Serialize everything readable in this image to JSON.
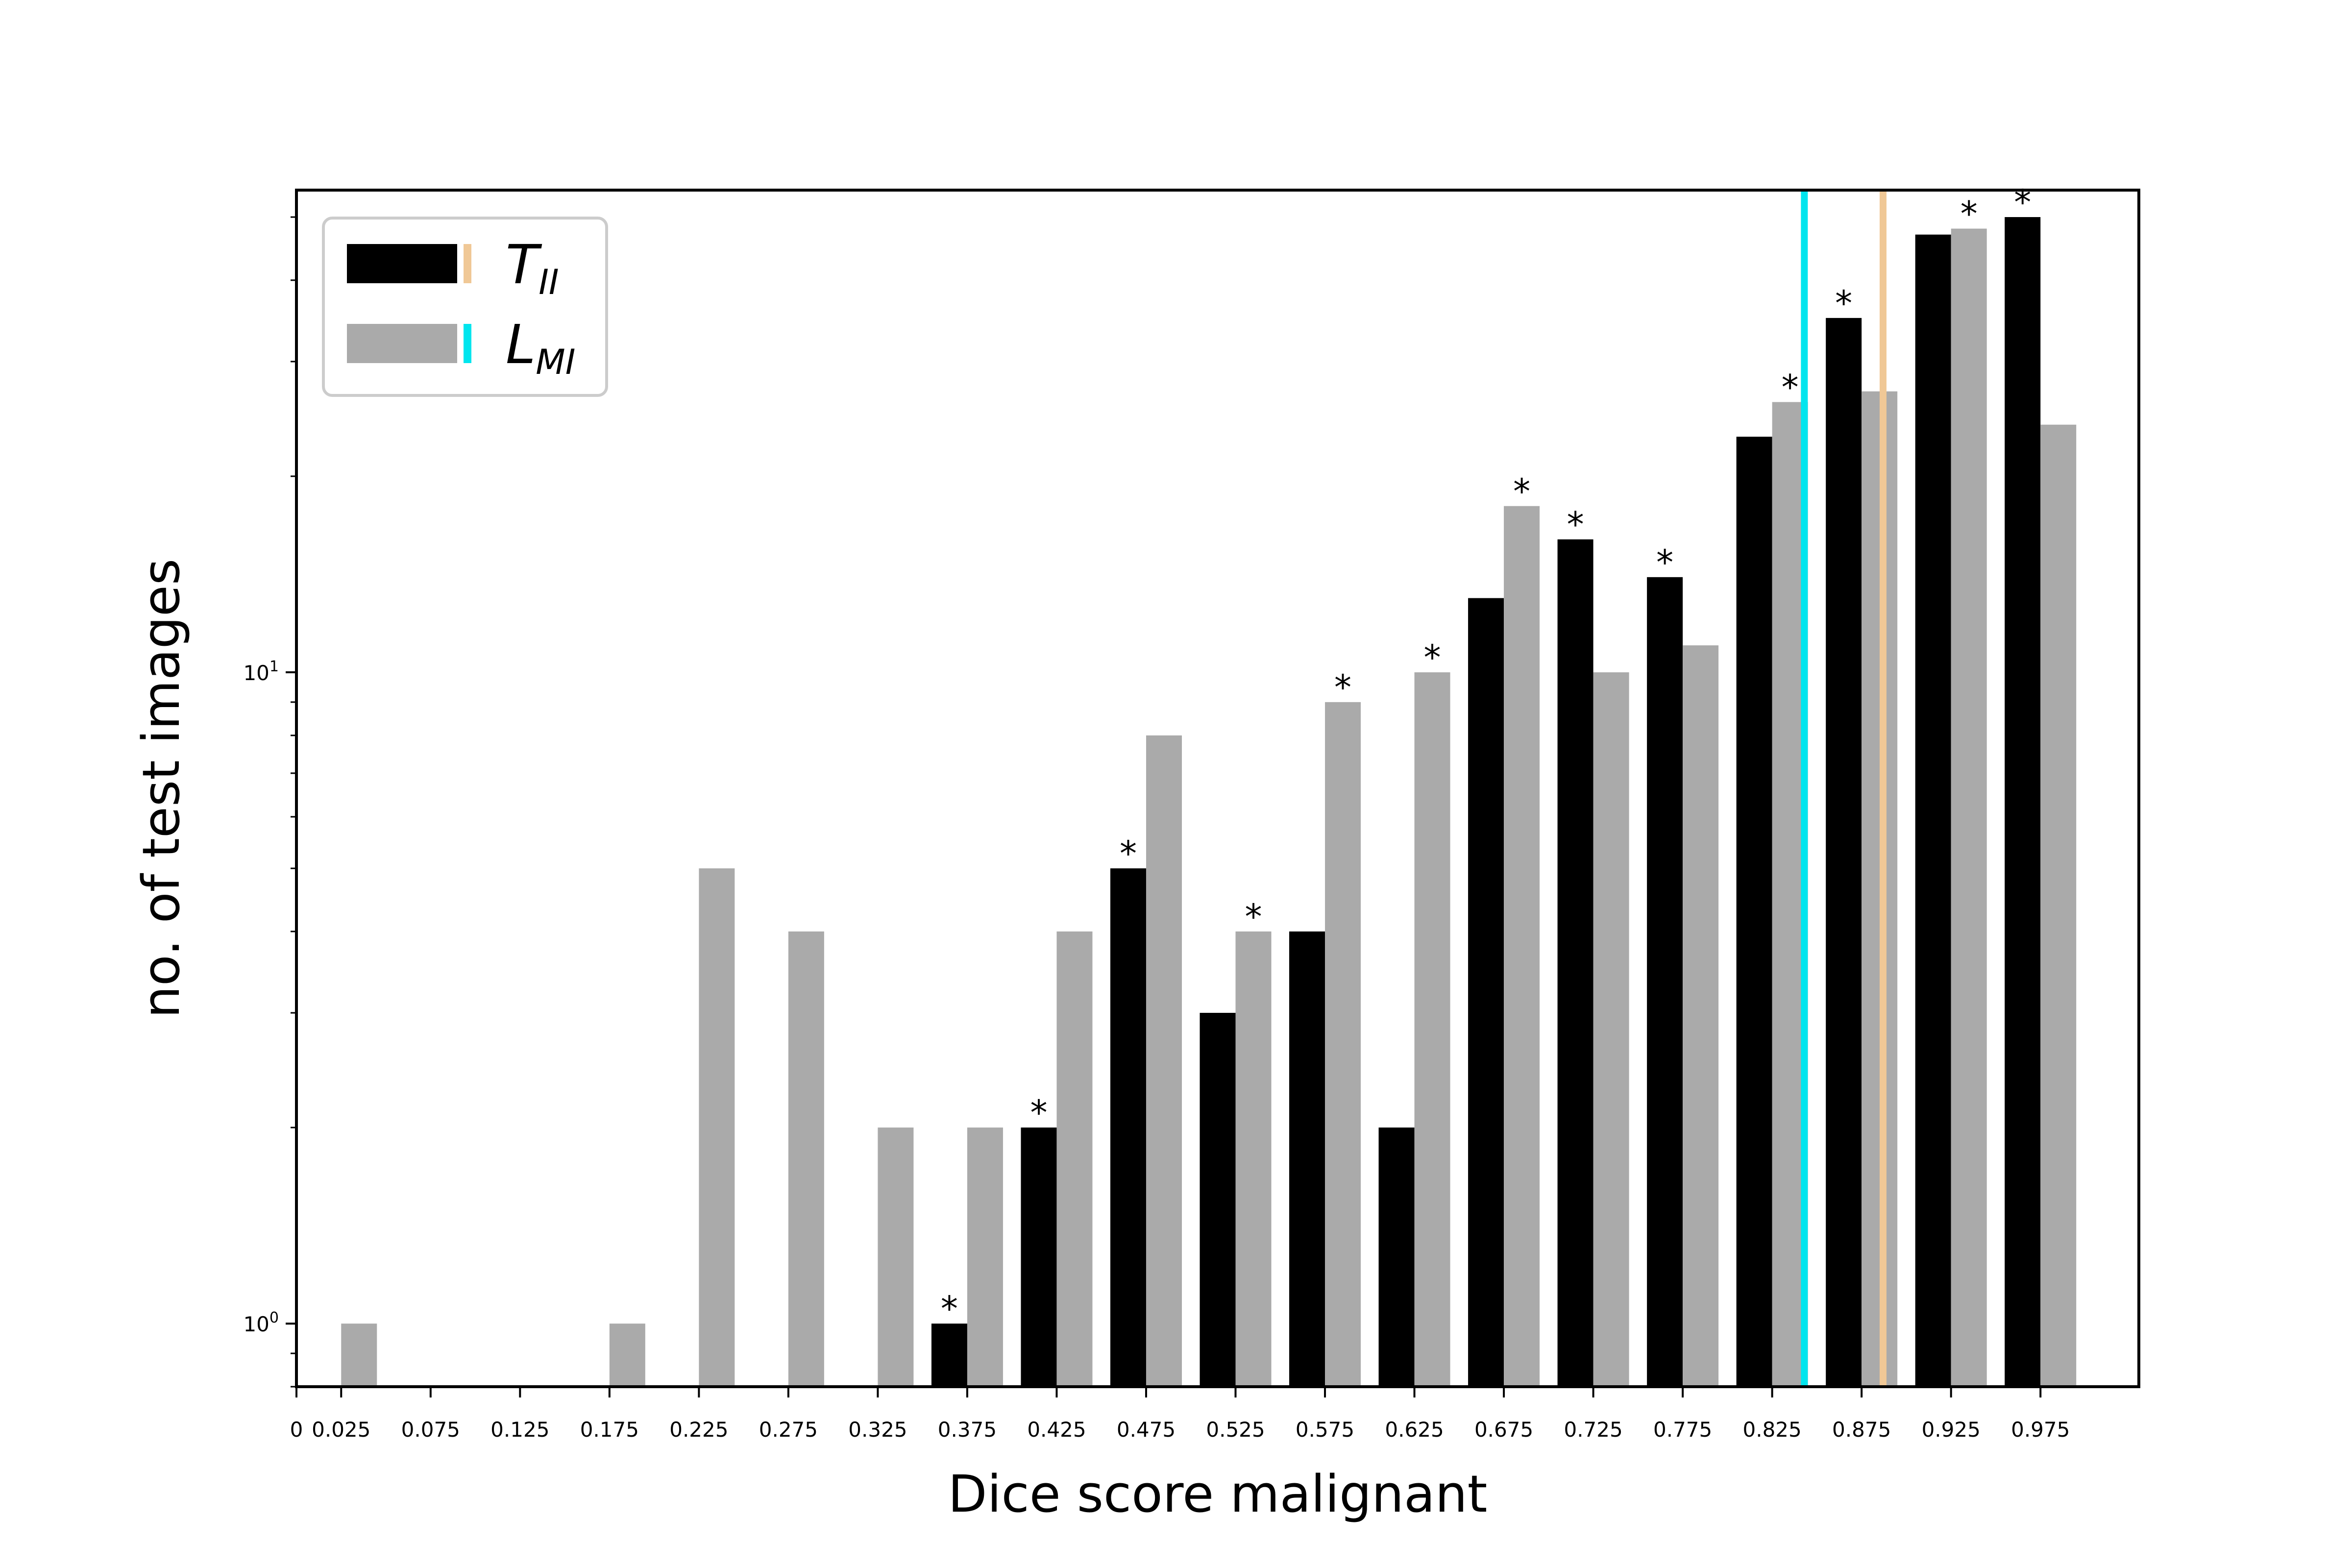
{
  "chart_data": {
    "type": "bar",
    "title": "",
    "xlabel": "Dice score malignant",
    "ylabel": "no. of test images",
    "yscale": "log",
    "ylim": [
      0.8,
      55
    ],
    "xlim": [
      0,
      1.03
    ],
    "x_ticks": [
      "0",
      "0.025",
      "0.075",
      "0.125",
      "0.175",
      "0.225",
      "0.275",
      "0.325",
      "0.375",
      "0.425",
      "0.475",
      "0.525",
      "0.575",
      "0.625",
      "0.675",
      "0.725",
      "0.775",
      "0.825",
      "0.875",
      "0.925",
      "0.975"
    ],
    "y_ticks": [
      {
        "value": 1,
        "base": "10",
        "exp": "0"
      },
      {
        "value": 10,
        "base": "10",
        "exp": "1"
      }
    ],
    "categories": [
      "0.025",
      "0.075",
      "0.125",
      "0.175",
      "0.225",
      "0.275",
      "0.325",
      "0.375",
      "0.425",
      "0.475",
      "0.525",
      "0.575",
      "0.625",
      "0.675",
      "0.725",
      "0.775",
      "0.825",
      "0.875",
      "0.925",
      "0.975"
    ],
    "series": [
      {
        "name_main": "T",
        "name_sub": "II",
        "color": "#000000",
        "marker_color": "#f0c896",
        "values": [
          0,
          0,
          0,
          0,
          0,
          0,
          0,
          1,
          2,
          5,
          3,
          4,
          2,
          13,
          16,
          14,
          23,
          35,
          47,
          50
        ]
      },
      {
        "name_main": "L",
        "name_sub": "MI",
        "color": "#aaaaaa",
        "marker_color": "#00e5ee",
        "values": [
          1,
          0,
          0,
          1,
          5,
          4,
          2,
          2,
          4,
          8,
          4,
          9,
          10,
          18,
          10,
          11,
          26,
          27,
          48,
          24
        ]
      }
    ],
    "significance_marker": "*",
    "significance": [
      {
        "category": "0.375",
        "series": 0
      },
      {
        "category": "0.425",
        "series": 0
      },
      {
        "category": "0.475",
        "series": 0
      },
      {
        "category": "0.525",
        "series": 1
      },
      {
        "category": "0.575",
        "series": 1
      },
      {
        "category": "0.625",
        "series": 1
      },
      {
        "category": "0.675",
        "series": 1
      },
      {
        "category": "0.725",
        "series": 0
      },
      {
        "category": "0.775",
        "series": 0
      },
      {
        "category": "0.825",
        "series": 1
      },
      {
        "category": "0.875",
        "series": 0
      },
      {
        "category": "0.925",
        "series": 1
      },
      {
        "category": "0.975",
        "series": 0
      }
    ],
    "reference_lines": [
      {
        "x": 0.887,
        "color": "#f0c896",
        "series": 0
      },
      {
        "x": 0.843,
        "color": "#00e5ee",
        "series": 1
      }
    ],
    "legend_position": "top-left",
    "grid": false
  }
}
